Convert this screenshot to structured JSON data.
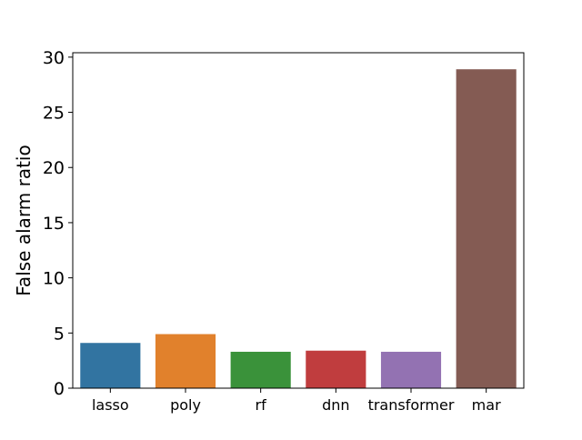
{
  "chart_data": {
    "type": "bar",
    "title": "",
    "xlabel": "",
    "ylabel": "False alarm ratio",
    "categories": [
      "lasso",
      "poly",
      "rf",
      "dnn",
      "transformer",
      "mar"
    ],
    "values": [
      4.1,
      4.9,
      3.3,
      3.4,
      3.3,
      28.9
    ],
    "colors": [
      "#3274a1",
      "#e1812c",
      "#3a923a",
      "#c03d3e",
      "#9372b2",
      "#845b53"
    ],
    "ylim": [
      0,
      30.4
    ],
    "yticks": [
      0,
      5,
      10,
      15,
      20,
      25,
      30
    ],
    "grid": false,
    "legend": "none"
  }
}
